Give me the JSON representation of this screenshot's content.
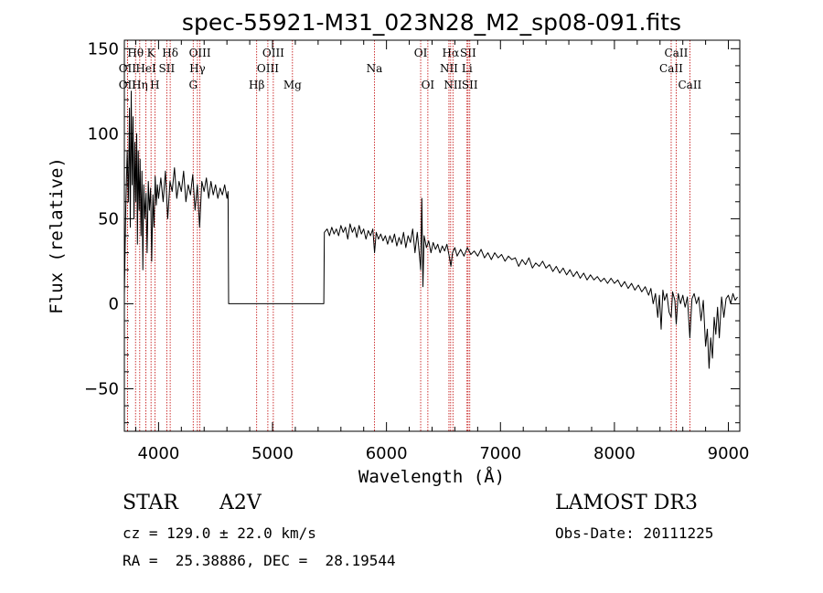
{
  "chart_data": {
    "type": "line",
    "title": "spec-55921-M31_023N28_M2_sp08-091.fits",
    "xlabel": "Wavelength (Å)",
    "ylabel": "Flux (relative)",
    "xlim": [
      3700,
      9100
    ],
    "ylim": [
      -75,
      155
    ],
    "xticks": [
      4000,
      5000,
      6000,
      7000,
      8000,
      9000
    ],
    "yticks": [
      -50,
      0,
      50,
      100,
      150
    ],
    "series": [
      {
        "name": "flux",
        "points": [
          [
            3700,
            5
          ],
          [
            3712,
            55
          ],
          [
            3725,
            90
          ],
          [
            3735,
            60
          ],
          [
            3745,
            115
          ],
          [
            3752,
            45
          ],
          [
            3760,
            125
          ],
          [
            3768,
            70
          ],
          [
            3776,
            110
          ],
          [
            3784,
            50
          ],
          [
            3792,
            95
          ],
          [
            3800,
            60
          ],
          [
            3808,
            100
          ],
          [
            3815,
            35
          ],
          [
            3822,
            90
          ],
          [
            3830,
            55
          ],
          [
            3838,
            85
          ],
          [
            3846,
            40
          ],
          [
            3854,
            78
          ],
          [
            3862,
            20
          ],
          [
            3870,
            70
          ],
          [
            3880,
            50
          ],
          [
            3890,
            65
          ],
          [
            3900,
            30
          ],
          [
            3910,
            72
          ],
          [
            3920,
            55
          ],
          [
            3930,
            68
          ],
          [
            3940,
            25
          ],
          [
            3950,
            64
          ],
          [
            3960,
            45
          ],
          [
            3970,
            75
          ],
          [
            3980,
            58
          ],
          [
            3990,
            70
          ],
          [
            4000,
            62
          ],
          [
            4020,
            74
          ],
          [
            4040,
            60
          ],
          [
            4060,
            78
          ],
          [
            4080,
            50
          ],
          [
            4100,
            72
          ],
          [
            4120,
            66
          ],
          [
            4140,
            80
          ],
          [
            4160,
            62
          ],
          [
            4180,
            72
          ],
          [
            4200,
            66
          ],
          [
            4220,
            78
          ],
          [
            4240,
            60
          ],
          [
            4260,
            70
          ],
          [
            4280,
            64
          ],
          [
            4300,
            76
          ],
          [
            4320,
            55
          ],
          [
            4340,
            70
          ],
          [
            4360,
            45
          ],
          [
            4380,
            72
          ],
          [
            4400,
            66
          ],
          [
            4420,
            74
          ],
          [
            4440,
            62
          ],
          [
            4460,
            72
          ],
          [
            4480,
            64
          ],
          [
            4500,
            70
          ],
          [
            4520,
            62
          ],
          [
            4540,
            68
          ],
          [
            4560,
            64
          ],
          [
            4580,
            70
          ],
          [
            4600,
            62
          ],
          [
            4610,
            66
          ],
          [
            4615,
            0
          ],
          [
            5450,
            0
          ],
          [
            5455,
            42
          ],
          [
            5480,
            44
          ],
          [
            5500,
            40
          ],
          [
            5520,
            45
          ],
          [
            5540,
            41
          ],
          [
            5560,
            44
          ],
          [
            5580,
            40
          ],
          [
            5600,
            46
          ],
          [
            5620,
            42
          ],
          [
            5640,
            45
          ],
          [
            5660,
            38
          ],
          [
            5680,
            47
          ],
          [
            5700,
            42
          ],
          [
            5720,
            45
          ],
          [
            5740,
            39
          ],
          [
            5760,
            46
          ],
          [
            5780,
            41
          ],
          [
            5800,
            44
          ],
          [
            5820,
            38
          ],
          [
            5840,
            43
          ],
          [
            5860,
            40
          ],
          [
            5880,
            44
          ],
          [
            5895,
            30
          ],
          [
            5910,
            42
          ],
          [
            5930,
            38
          ],
          [
            5950,
            41
          ],
          [
            5970,
            37
          ],
          [
            5990,
            40
          ],
          [
            6010,
            35
          ],
          [
            6030,
            40
          ],
          [
            6050,
            36
          ],
          [
            6070,
            41
          ],
          [
            6090,
            34
          ],
          [
            6110,
            39
          ],
          [
            6130,
            35
          ],
          [
            6150,
            42
          ],
          [
            6170,
            33
          ],
          [
            6190,
            40
          ],
          [
            6210,
            36
          ],
          [
            6230,
            44
          ],
          [
            6250,
            30
          ],
          [
            6270,
            42
          ],
          [
            6290,
            28
          ],
          [
            6300,
            20
          ],
          [
            6310,
            62
          ],
          [
            6320,
            10
          ],
          [
            6330,
            40
          ],
          [
            6350,
            33
          ],
          [
            6370,
            37
          ],
          [
            6390,
            30
          ],
          [
            6410,
            36
          ],
          [
            6430,
            32
          ],
          [
            6450,
            35
          ],
          [
            6470,
            30
          ],
          [
            6490,
            34
          ],
          [
            6510,
            31
          ],
          [
            6530,
            35
          ],
          [
            6550,
            28
          ],
          [
            6565,
            22
          ],
          [
            6580,
            30
          ],
          [
            6600,
            33
          ],
          [
            6620,
            28
          ],
          [
            6650,
            32
          ],
          [
            6680,
            28
          ],
          [
            6710,
            33
          ],
          [
            6740,
            29
          ],
          [
            6770,
            31
          ],
          [
            6800,
            28
          ],
          [
            6830,
            32
          ],
          [
            6860,
            27
          ],
          [
            6890,
            30
          ],
          [
            6920,
            26
          ],
          [
            6950,
            30
          ],
          [
            6980,
            27
          ],
          [
            7010,
            29
          ],
          [
            7040,
            25
          ],
          [
            7070,
            28
          ],
          [
            7100,
            26
          ],
          [
            7130,
            27
          ],
          [
            7160,
            22
          ],
          [
            7190,
            26
          ],
          [
            7220,
            23
          ],
          [
            7250,
            27
          ],
          [
            7280,
            21
          ],
          [
            7310,
            24
          ],
          [
            7340,
            22
          ],
          [
            7370,
            25
          ],
          [
            7400,
            21
          ],
          [
            7430,
            23
          ],
          [
            7460,
            19
          ],
          [
            7490,
            22
          ],
          [
            7520,
            18
          ],
          [
            7550,
            21
          ],
          [
            7580,
            17
          ],
          [
            7610,
            20
          ],
          [
            7640,
            16
          ],
          [
            7670,
            19
          ],
          [
            7700,
            15
          ],
          [
            7730,
            18
          ],
          [
            7760,
            14
          ],
          [
            7790,
            17
          ],
          [
            7820,
            14
          ],
          [
            7850,
            16
          ],
          [
            7880,
            13
          ],
          [
            7910,
            15
          ],
          [
            7940,
            12
          ],
          [
            7970,
            15
          ],
          [
            8000,
            12
          ],
          [
            8030,
            14
          ],
          [
            8060,
            10
          ],
          [
            8090,
            13
          ],
          [
            8120,
            9
          ],
          [
            8150,
            12
          ],
          [
            8180,
            8
          ],
          [
            8210,
            11
          ],
          [
            8240,
            7
          ],
          [
            8270,
            10
          ],
          [
            8300,
            5
          ],
          [
            8320,
            9
          ],
          [
            8340,
            0
          ],
          [
            8360,
            6
          ],
          [
            8380,
            -8
          ],
          [
            8395,
            5
          ],
          [
            8410,
            -15
          ],
          [
            8425,
            8
          ],
          [
            8440,
            2
          ],
          [
            8460,
            6
          ],
          [
            8480,
            -5
          ],
          [
            8498,
            -8
          ],
          [
            8510,
            7
          ],
          [
            8530,
            2
          ],
          [
            8542,
            -12
          ],
          [
            8560,
            6
          ],
          [
            8580,
            0
          ],
          [
            8600,
            5
          ],
          [
            8620,
            -2
          ],
          [
            8640,
            4
          ],
          [
            8662,
            -20
          ],
          [
            8680,
            3
          ],
          [
            8700,
            6
          ],
          [
            8720,
            0
          ],
          [
            8740,
            4
          ],
          [
            8760,
            -10
          ],
          [
            8780,
            2
          ],
          [
            8800,
            -25
          ],
          [
            8815,
            -15
          ],
          [
            8830,
            -38
          ],
          [
            8845,
            -20
          ],
          [
            8860,
            -32
          ],
          [
            8875,
            -8
          ],
          [
            8890,
            -18
          ],
          [
            8905,
            -2
          ],
          [
            8920,
            -20
          ],
          [
            8940,
            4
          ],
          [
            8960,
            -8
          ],
          [
            8980,
            3
          ],
          [
            9000,
            5
          ],
          [
            9020,
            0
          ],
          [
            9040,
            6
          ],
          [
            9060,
            2
          ],
          [
            9080,
            4
          ]
        ]
      }
    ],
    "line_markers": [
      {
        "name": "OII",
        "wave": 3727,
        "row": 2
      },
      {
        "name": "OII",
        "wave": 3727,
        "row": 3
      },
      {
        "name": "Hθ",
        "wave": 3798,
        "row": 1
      },
      {
        "name": "Hη",
        "wave": 3835,
        "row": 3
      },
      {
        "name": "HeI",
        "wave": 3889,
        "row": 2
      },
      {
        "name": "K",
        "wave": 3934,
        "row": 1
      },
      {
        "name": "H",
        "wave": 3968,
        "row": 3
      },
      {
        "name": "SII",
        "wave": 4072,
        "row": 2
      },
      {
        "name": "Hδ",
        "wave": 4102,
        "row": 1
      },
      {
        "name": "G",
        "wave": 4304,
        "row": 3
      },
      {
        "name": "Hγ",
        "wave": 4341,
        "row": 2
      },
      {
        "name": "OIII",
        "wave": 4363,
        "row": 1
      },
      {
        "name": "Hβ",
        "wave": 4861,
        "row": 3
      },
      {
        "name": "OIII",
        "wave": 4959,
        "row": 2
      },
      {
        "name": "OIII",
        "wave": 5007,
        "row": 1
      },
      {
        "name": "Mg",
        "wave": 5175,
        "row": 3
      },
      {
        "name": "Na",
        "wave": 5894,
        "row": 2
      },
      {
        "name": "OI",
        "wave": 6300,
        "row": 1
      },
      {
        "name": "OI",
        "wave": 6363,
        "row": 3
      },
      {
        "name": "NII",
        "wave": 6548,
        "row": 2
      },
      {
        "name": "Hα",
        "wave": 6563,
        "row": 1
      },
      {
        "name": "NII",
        "wave": 6583,
        "row": 3
      },
      {
        "name": "Li",
        "wave": 6707,
        "row": 2
      },
      {
        "name": "SII",
        "wave": 6716,
        "row": 1
      },
      {
        "name": "SII",
        "wave": 6731,
        "row": 3
      },
      {
        "name": "CaII",
        "wave": 8498,
        "row": 2
      },
      {
        "name": "CaII",
        "wave": 8542,
        "row": 1
      },
      {
        "name": "CaII",
        "wave": 8662,
        "row": 3
      }
    ],
    "colors": {
      "spectrum": "#000000",
      "marker": "#c00000"
    }
  },
  "info": {
    "object_class": "STAR",
    "subclass": "A2V",
    "survey": "LAMOST DR3",
    "cz": "cz = 129.0 ± 22.0 km/s",
    "obs_date": "Obs-Date: 20111225",
    "coords": "RA =  25.38886, DEC =  28.19544"
  }
}
